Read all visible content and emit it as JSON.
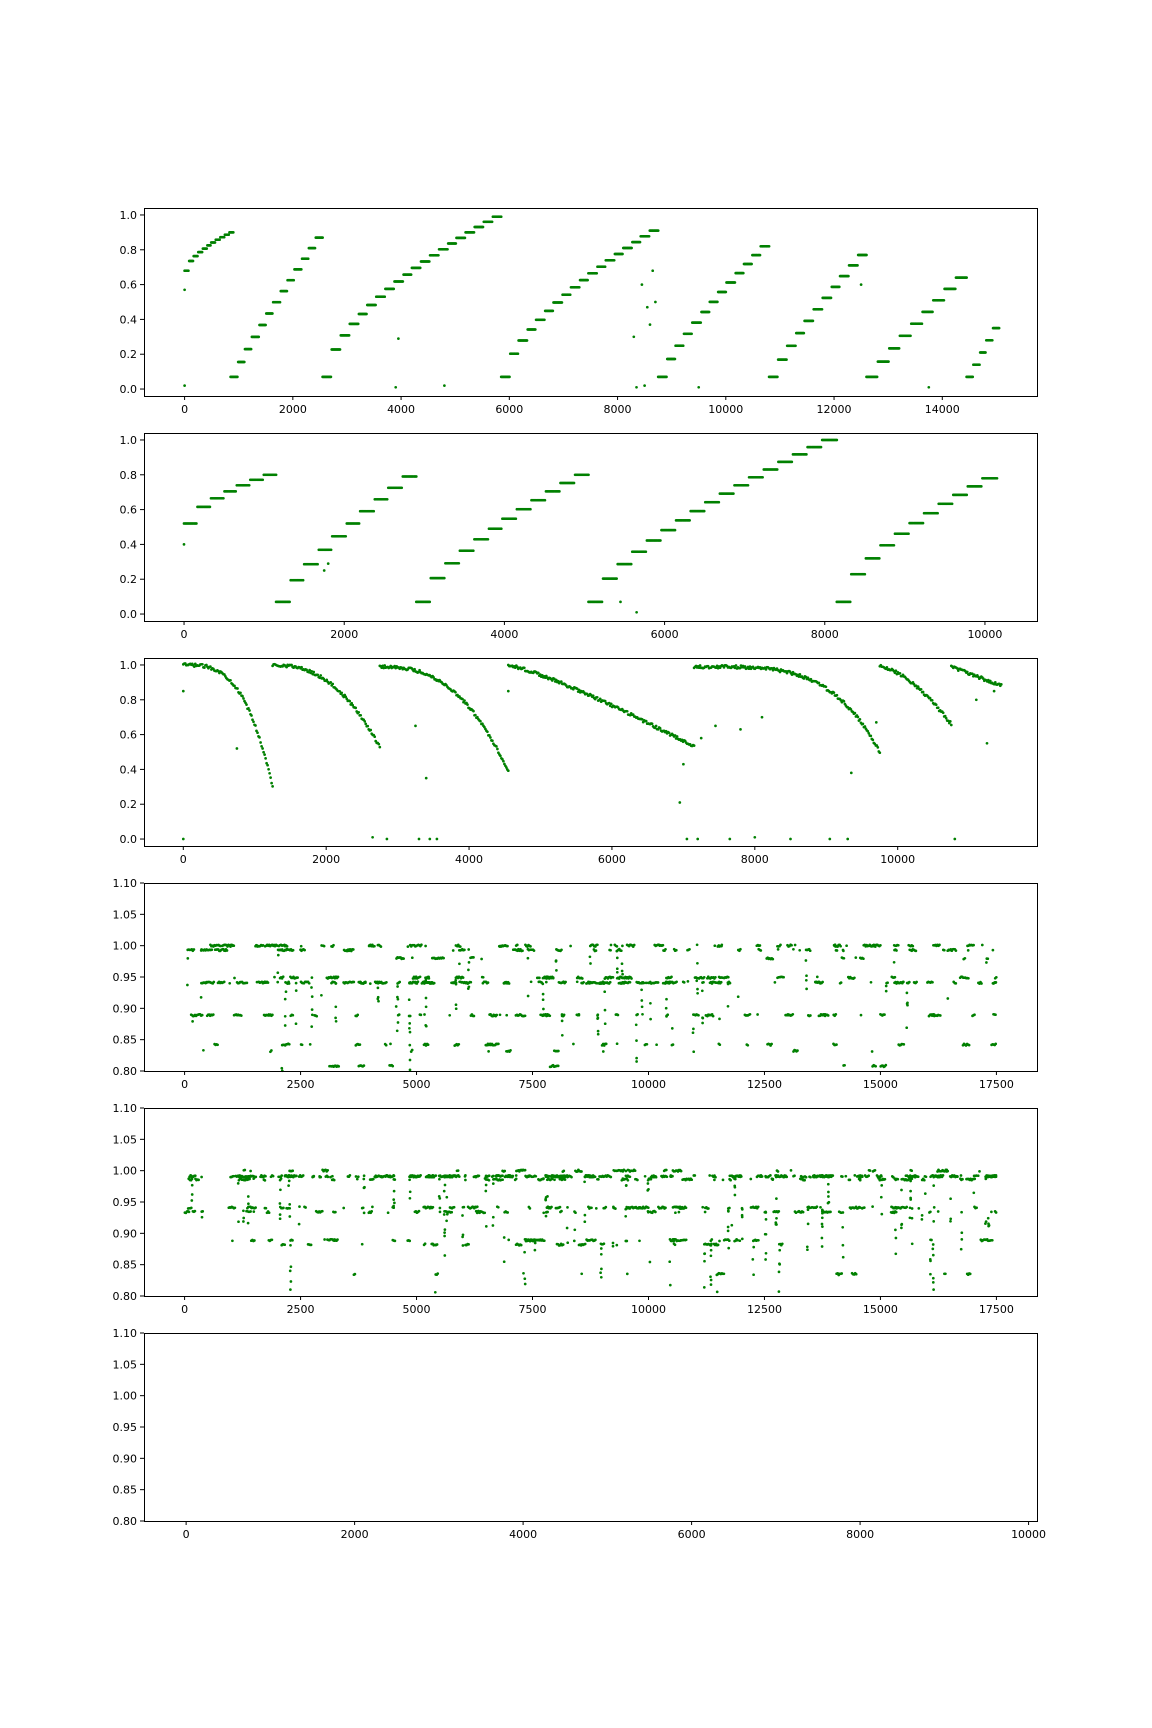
{
  "chart_data": [
    {
      "type": "scatter",
      "color": "#008000",
      "xlim": [
        -750,
        15750
      ],
      "ylim": [
        -0.04,
        1.04
      ],
      "xticks": [
        0,
        2000,
        4000,
        6000,
        8000,
        10000,
        12000,
        14000
      ],
      "xtick_labels": [
        "0",
        "2000",
        "4000",
        "6000",
        "8000",
        "10000",
        "12000",
        "14000"
      ],
      "yticks": [
        0.0,
        0.2,
        0.4,
        0.6,
        0.8,
        1.0
      ],
      "ytick_labels": [
        "0.0",
        "0.2",
        "0.4",
        "0.6",
        "0.8",
        "1.0"
      ],
      "segments": [
        {
          "x": [
            0,
            900
          ],
          "y": [
            0.68,
            0.9
          ],
          "curve": 0.6,
          "shape": "step",
          "steps": 11
        },
        {
          "x": [
            850,
            2550
          ],
          "y": [
            0.07,
            0.87
          ],
          "curve": 0.9,
          "shape": "step",
          "steps": 13
        },
        {
          "x": [
            2550,
            5850
          ],
          "y": [
            0.07,
            0.99
          ],
          "curve": 0.6,
          "shape": "step",
          "steps": 20
        },
        {
          "x": [
            5850,
            8750
          ],
          "y": [
            0.07,
            0.91
          ],
          "curve": 0.65,
          "shape": "step",
          "steps": 18
        },
        {
          "x": [
            8750,
            10800
          ],
          "y": [
            0.07,
            0.82
          ],
          "curve": 0.8,
          "shape": "step",
          "steps": 13
        },
        {
          "x": [
            10800,
            12600
          ],
          "y": [
            0.07,
            0.77
          ],
          "curve": 0.85,
          "shape": "step",
          "steps": 11
        },
        {
          "x": [
            12600,
            14450
          ],
          "y": [
            0.07,
            0.64
          ],
          "curve": 0.9,
          "shape": "step",
          "steps": 9
        },
        {
          "x": [
            14450,
            15050
          ],
          "y": [
            0.07,
            0.35
          ],
          "curve": 1.0,
          "shape": "step",
          "steps": 5
        }
      ],
      "outliers": [
        [
          0,
          0.57
        ],
        [
          0,
          0.02
        ],
        [
          3950,
          0.29
        ],
        [
          4800,
          0.02
        ],
        [
          3900,
          0.01
        ],
        [
          8450,
          0.6
        ],
        [
          8550,
          0.47
        ],
        [
          8600,
          0.37
        ],
        [
          8500,
          0.02
        ],
        [
          8650,
          0.68
        ],
        [
          8700,
          0.5
        ],
        [
          9500,
          0.01
        ],
        [
          12500,
          0.6
        ],
        [
          13750,
          0.01
        ],
        [
          8300,
          0.3
        ],
        [
          8350,
          0.01
        ]
      ]
    },
    {
      "type": "scatter",
      "color": "#008000",
      "xlim": [
        -500,
        10650
      ],
      "ylim": [
        -0.04,
        1.04
      ],
      "xticks": [
        0,
        2000,
        4000,
        6000,
        8000,
        10000
      ],
      "xtick_labels": [
        "0",
        "2000",
        "4000",
        "6000",
        "8000",
        "10000"
      ],
      "yticks": [
        0.0,
        0.2,
        0.4,
        0.6,
        0.8,
        1.0
      ],
      "ytick_labels": [
        "0.0",
        "0.2",
        "0.4",
        "0.6",
        "0.8",
        "1.0"
      ],
      "segments": [
        {
          "x": [
            0,
            1150
          ],
          "y": [
            0.52,
            0.8
          ],
          "curve": 0.6,
          "shape": "step",
          "steps": 7
        },
        {
          "x": [
            1150,
            2900
          ],
          "y": [
            0.07,
            0.79
          ],
          "curve": 0.8,
          "shape": "step",
          "steps": 10
        },
        {
          "x": [
            2900,
            5050
          ],
          "y": [
            0.07,
            0.8
          ],
          "curve": 0.7,
          "shape": "step",
          "steps": 12
        },
        {
          "x": [
            5050,
            8150
          ],
          "y": [
            0.07,
            1.0
          ],
          "curve": 0.7,
          "shape": "step",
          "steps": 17
        },
        {
          "x": [
            8150,
            10150
          ],
          "y": [
            0.07,
            0.78
          ],
          "curve": 0.65,
          "shape": "step",
          "steps": 11
        }
      ],
      "outliers": [
        [
          0,
          0.4
        ],
        [
          5650,
          0.01
        ],
        [
          1750,
          0.25
        ],
        [
          1800,
          0.29
        ],
        [
          5450,
          0.07
        ]
      ]
    },
    {
      "type": "scatter",
      "color": "#008000",
      "xlim": [
        -550,
        11950
      ],
      "ylim": [
        -0.04,
        1.04
      ],
      "xticks": [
        0,
        2000,
        4000,
        6000,
        8000,
        10000
      ],
      "xtick_labels": [
        "0",
        "2000",
        "4000",
        "6000",
        "8000",
        "10000"
      ],
      "yticks": [
        0.0,
        0.2,
        0.4,
        0.6,
        0.8,
        1.0
      ],
      "ytick_labels": [
        "0.0",
        "0.2",
        "0.4",
        "0.6",
        "0.8",
        "1.0"
      ],
      "segments": [
        {
          "x": [
            0,
            1250
          ],
          "y": [
            1.0,
            0.3
          ],
          "curve": 3.2,
          "shape": "line",
          "steps": 0
        },
        {
          "x": [
            1250,
            2750
          ],
          "y": [
            1.0,
            0.53
          ],
          "curve": 2.4,
          "shape": "line",
          "steps": 0
        },
        {
          "x": [
            2750,
            4550
          ],
          "y": [
            0.99,
            0.39
          ],
          "curve": 2.6,
          "shape": "line",
          "steps": 0
        },
        {
          "x": [
            4550,
            7150
          ],
          "y": [
            1.0,
            0.53
          ],
          "curve": 1.2,
          "shape": "line",
          "steps": 0
        },
        {
          "x": [
            7150,
            9750
          ],
          "y": [
            0.99,
            0.5
          ],
          "curve": 4.0,
          "shape": "line",
          "steps": 0
        },
        {
          "x": [
            9750,
            10750
          ],
          "y": [
            0.99,
            0.66
          ],
          "curve": 1.6,
          "shape": "line",
          "steps": 0
        },
        {
          "x": [
            10750,
            11450
          ],
          "y": [
            0.99,
            0.88
          ],
          "curve": 1.0,
          "shape": "line",
          "steps": 0
        }
      ],
      "outliers": [
        [
          0,
          0.85
        ],
        [
          0,
          0.0
        ],
        [
          750,
          0.52
        ],
        [
          2650,
          0.01
        ],
        [
          2850,
          0.0
        ],
        [
          3250,
          0.65
        ],
        [
          3300,
          0.0
        ],
        [
          3450,
          0.0
        ],
        [
          3550,
          0.0
        ],
        [
          3400,
          0.35
        ],
        [
          4550,
          0.85
        ],
        [
          6950,
          0.21
        ],
        [
          7000,
          0.43
        ],
        [
          7050,
          0.0
        ],
        [
          7200,
          0.0
        ],
        [
          7250,
          0.58
        ],
        [
          7450,
          0.65
        ],
        [
          7650,
          0.0
        ],
        [
          7800,
          0.63
        ],
        [
          8000,
          0.01
        ],
        [
          8100,
          0.7
        ],
        [
          8500,
          0.0
        ],
        [
          9050,
          0.0
        ],
        [
          9300,
          0.0
        ],
        [
          9350,
          0.38
        ],
        [
          9700,
          0.67
        ],
        [
          10800,
          0.0
        ],
        [
          11100,
          0.8
        ],
        [
          11250,
          0.55
        ],
        [
          11350,
          0.85
        ]
      ]
    },
    {
      "type": "scatter",
      "color": "#008000",
      "xlim": [
        -875,
        18375
      ],
      "ylim": [
        0.8,
        1.1
      ],
      "xticks": [
        0,
        2500,
        5000,
        7500,
        10000,
        12500,
        15000,
        17500
      ],
      "xtick_labels": [
        "0",
        "2500",
        "5000",
        "7500",
        "10000",
        "12500",
        "15000",
        "17500"
      ],
      "yticks": [
        0.8,
        0.85,
        0.9,
        0.95,
        1.0,
        1.05,
        1.1
      ],
      "ytick_labels": [
        "0.80",
        "0.85",
        "0.90",
        "0.95",
        "1.00",
        "1.05",
        "1.10"
      ],
      "levels": [
        1.0,
        0.993,
        0.98,
        0.941,
        0.949,
        0.889,
        0.842,
        0.832,
        0.808
      ],
      "level_weights": [
        14,
        10,
        4,
        24,
        8,
        12,
        8,
        3,
        2
      ],
      "x_range": [
        0,
        17500
      ],
      "gaps": [],
      "n_points": 1500,
      "seed": 4
    },
    {
      "type": "scatter",
      "color": "#008000",
      "xlim": [
        -875,
        18375
      ],
      "ylim": [
        0.8,
        1.1
      ],
      "xticks": [
        0,
        2500,
        5000,
        7500,
        10000,
        12500,
        15000,
        17500
      ],
      "xtick_labels": [
        "0",
        "2500",
        "5000",
        "7500",
        "10000",
        "12500",
        "15000",
        "17500"
      ],
      "yticks": [
        0.8,
        0.85,
        0.9,
        0.95,
        1.0,
        1.05,
        1.1
      ],
      "ytick_labels": [
        "0.80",
        "0.85",
        "0.90",
        "0.95",
        "1.00",
        "1.05",
        "1.10"
      ],
      "levels": [
        0.991,
        0.986,
        1.0,
        0.941,
        0.934,
        0.889,
        0.882,
        0.835
      ],
      "level_weights": [
        40,
        14,
        5,
        14,
        8,
        6,
        5,
        2
      ],
      "x_range": [
        0,
        17500
      ],
      "gaps": [
        [
          400,
          950
        ]
      ],
      "n_points": 1700,
      "seed": 5
    },
    {
      "type": "scatter",
      "color": "#008000",
      "xlim": [
        -500,
        10100
      ],
      "ylim": [
        0.8,
        1.1
      ],
      "xticks": [
        0,
        2000,
        4000,
        6000,
        8000,
        10000
      ],
      "xtick_labels": [
        "0",
        "2000",
        "4000",
        "6000",
        "8000",
        "10000"
      ],
      "yticks": [
        0.8,
        0.85,
        0.9,
        0.95,
        1.0,
        1.05,
        1.1
      ],
      "ytick_labels": [
        "0.80",
        "0.85",
        "0.90",
        "0.95",
        "1.00",
        "1.05",
        "1.10"
      ],
      "levels": [],
      "x_range": [
        0,
        0
      ],
      "gaps": [],
      "n_points": 0,
      "seed": 6
    }
  ]
}
